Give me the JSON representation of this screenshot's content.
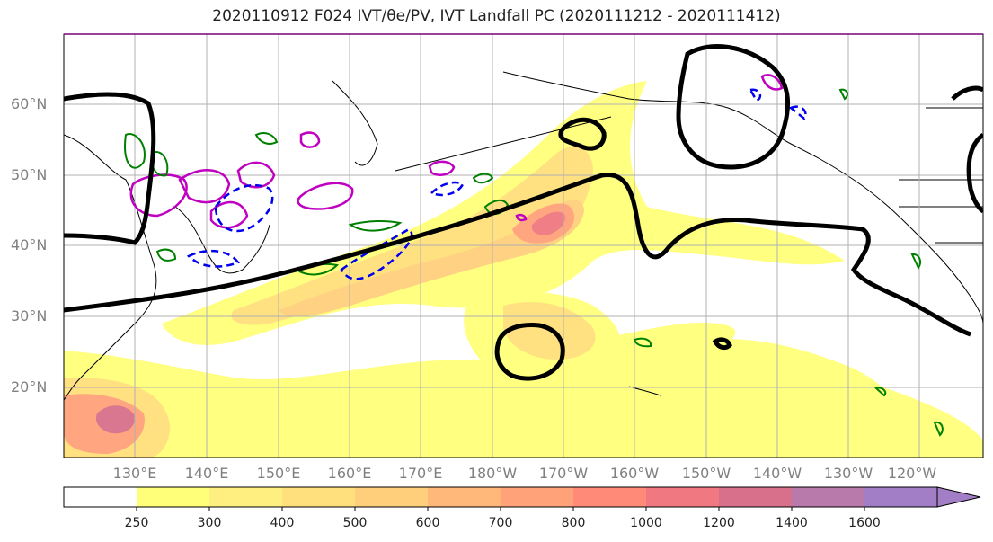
{
  "title_text": "2020110912 F024 IVT/θe/PV, IVT Landfall PC (2020111212 - 2020111412)",
  "lat_labels": [
    "60°N",
    "50°N",
    "40°N",
    "30°N",
    "20°N"
  ],
  "lon_labels": [
    "130°E",
    "140°E",
    "150°E",
    "160°E",
    "170°E",
    "180°W",
    "170°W",
    "160°W",
    "150°W",
    "140°W",
    "130°W",
    "120°W"
  ],
  "colorbar": {
    "ticks": [
      "250",
      "300",
      "400",
      "500",
      "600",
      "700",
      "800",
      "1000",
      "1200",
      "1400",
      "1600"
    ],
    "colors": [
      "#ffffff",
      "#ffff7a",
      "#ffef80",
      "#ffe07c",
      "#ffcf7c",
      "#ffb87a",
      "#ffa27a",
      "#ff8a78",
      "#f07880",
      "#d8708c",
      "#b87aab",
      "#a27ec6"
    ]
  },
  "legend_colors": {
    "pv_magenta": "#c000c0",
    "theta_green": "#008000",
    "theta_blue": "#0000ee",
    "pc_black": "#000000"
  }
}
